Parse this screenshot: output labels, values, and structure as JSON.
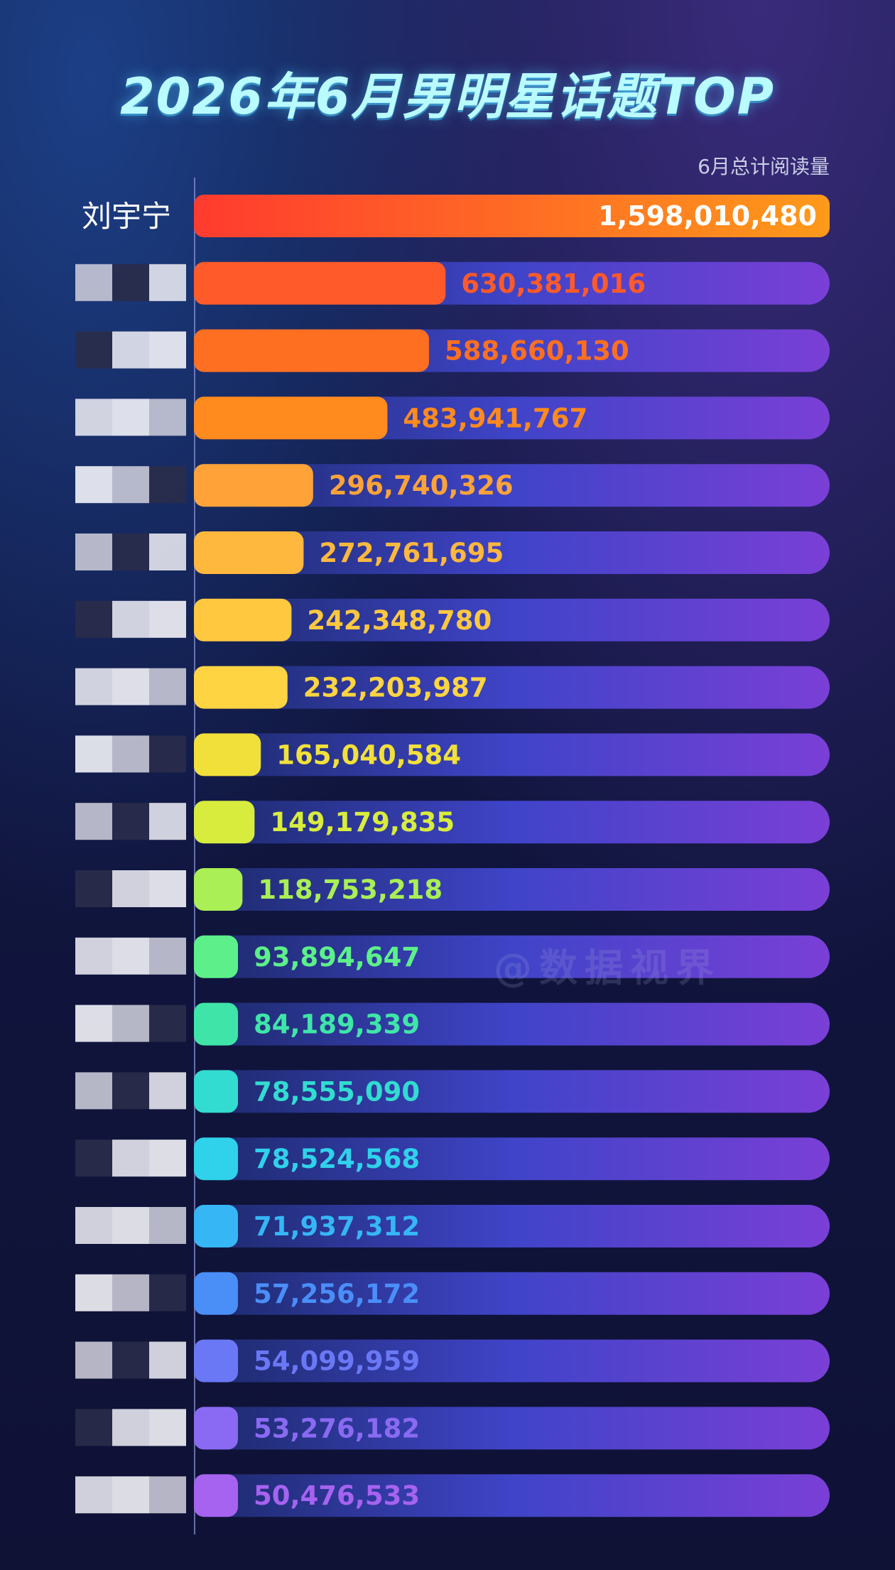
{
  "chart_data": {
    "type": "bar",
    "orientation": "horizontal",
    "title": "2026年6月男明星话题TOP",
    "subtitle": "6月总计阅读量",
    "watermark": "@数据视界",
    "categories": [
      "刘宇宁",
      "",
      "",
      "",
      "",
      "",
      "",
      "",
      "",
      "",
      "",
      "",
      "",
      "",
      "",
      "",
      "",
      "",
      "",
      ""
    ],
    "values": [
      1598010480,
      630381016,
      588660130,
      483941767,
      296740326,
      272761695,
      242348780,
      232203987,
      165040584,
      149179835,
      118753218,
      93894647,
      84189339,
      78555090,
      78524568,
      71937312,
      57256172,
      54099959,
      53276182,
      50476533
    ],
    "labels": [
      "1,598,010,480",
      "630,381,016",
      "588,660,130",
      "483,941,767",
      "296,740,326",
      "272,761,695",
      "242,348,780",
      "232,203,987",
      "165,040,584",
      "149,179,835",
      "118,753,218",
      "93,894,647",
      "84,189,339",
      "78,555,090",
      "78,524,568",
      "71,937,312",
      "57,256,172",
      "54,099,959",
      "53,276,182",
      "50,476,533"
    ],
    "colors": [
      "#ff4a2e",
      "#ff5a2a",
      "#ff6f22",
      "#ff8a1e",
      "#ffa339",
      "#ffb83e",
      "#ffc83f",
      "#ffd442",
      "#f2e03a",
      "#d8ec3e",
      "#a9ef55",
      "#5df08a",
      "#3fe5a8",
      "#32dcd0",
      "#2fd2ea",
      "#36b6f5",
      "#4a8ef8",
      "#6a78f5",
      "#8a6af2",
      "#a563f0"
    ],
    "track_gradient": [
      "#1c2a6a",
      "#3f44c8",
      "#7a3fd6"
    ],
    "xlim": [
      0,
      1598010480
    ],
    "grid": false,
    "legend": "none"
  }
}
